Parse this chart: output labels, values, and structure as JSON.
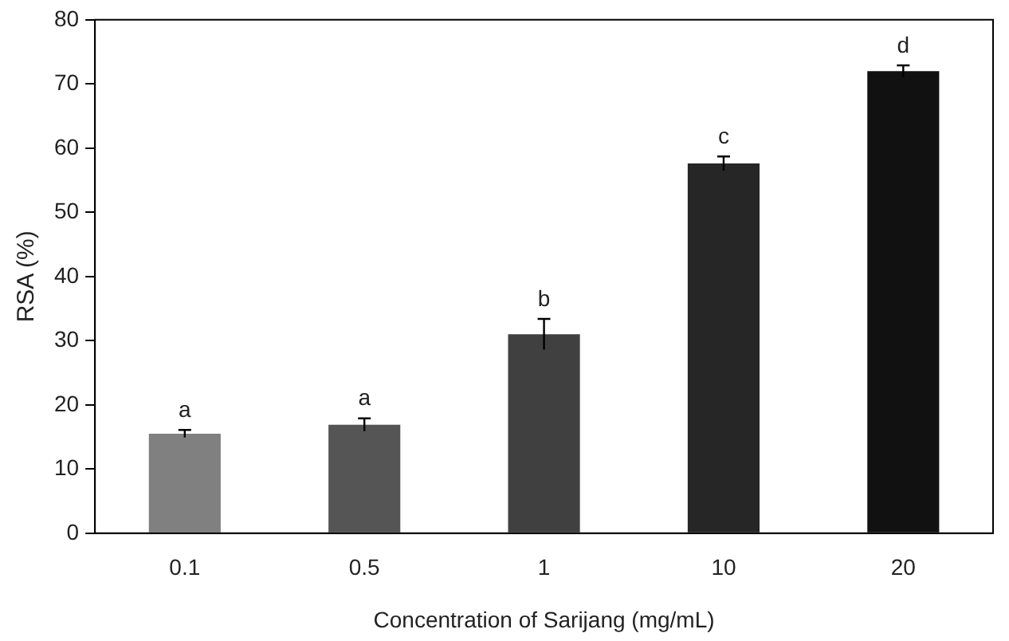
{
  "chart_data": {
    "type": "bar",
    "xlabel": "Concentration of Sarijang (mg/mL)",
    "ylabel": "RSA (%)",
    "categories": [
      "0.1",
      "0.5",
      "1",
      "10",
      "20"
    ],
    "values": [
      15.5,
      16.9,
      31.0,
      57.6,
      72.0
    ],
    "errors": [
      0.6,
      1.0,
      2.4,
      1.1,
      0.9
    ],
    "colors": [
      "#808080",
      "#555555",
      "#404040",
      "#262626",
      "#111111"
    ],
    "ylim": [
      0,
      80
    ],
    "yticks": [
      0,
      10,
      20,
      30,
      40,
      50,
      60,
      70,
      80
    ],
    "grid": false,
    "legend": false,
    "annotations": [
      {
        "text": "a",
        "x": "0.1",
        "y": 16.1
      },
      {
        "text": "a",
        "x": "0.5",
        "y": 17.9
      },
      {
        "text": "b",
        "x": "1",
        "y": 33.4
      },
      {
        "text": "c",
        "x": "10",
        "y": 58.7
      },
      {
        "text": "d",
        "x": "20",
        "y": 72.9
      }
    ]
  }
}
